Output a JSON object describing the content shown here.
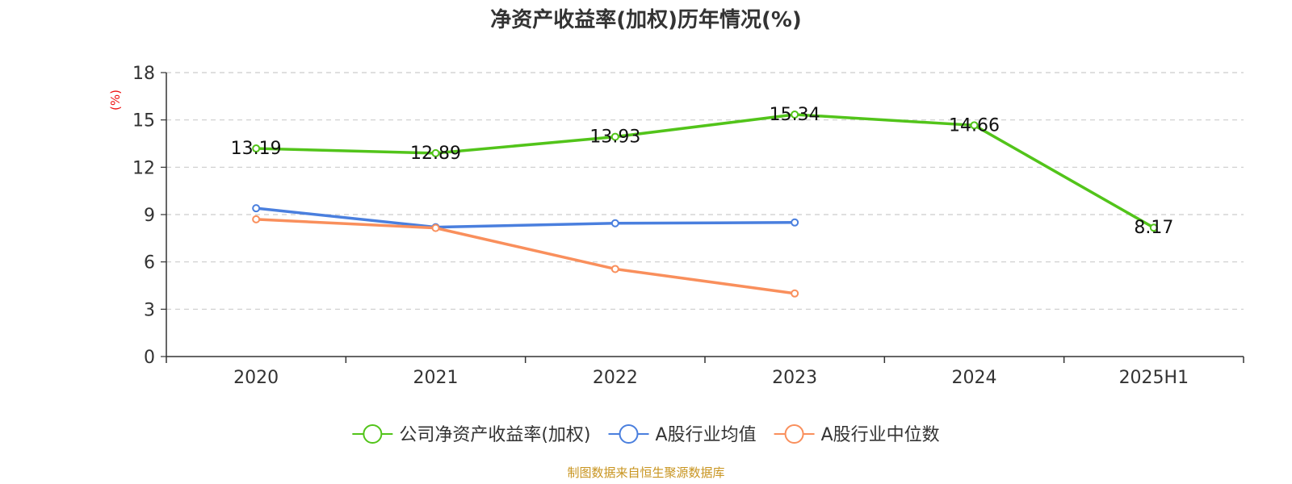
{
  "chart_data": {
    "type": "line",
    "title": "净资产收益率(加权)历年情况(%)",
    "ylabel": "(%)",
    "xlabel": "",
    "categories": [
      "2020",
      "2021",
      "2022",
      "2023",
      "2024",
      "2025H1"
    ],
    "ylim": [
      0,
      18
    ],
    "yticks": [
      0,
      3,
      6,
      9,
      12,
      15,
      18
    ],
    "grid": true,
    "legend_position": "bottom",
    "series": [
      {
        "name": "公司净资产收益率(加权)",
        "color": "#52c41a",
        "values": [
          13.19,
          12.89,
          13.93,
          15.34,
          14.66,
          8.17
        ],
        "labels": [
          "13.19",
          "12.89",
          "13.93",
          "15.34",
          "14.66",
          "8.17"
        ],
        "show_labels": true
      },
      {
        "name": "A股行业均值",
        "color": "#4a7fde",
        "values": [
          9.4,
          8.2,
          8.45,
          8.5,
          null,
          null
        ],
        "show_labels": false
      },
      {
        "name": "A股行业中位数",
        "color": "#f98f5c",
        "values": [
          8.7,
          8.15,
          5.55,
          4.0,
          null,
          null
        ],
        "show_labels": false
      }
    ]
  },
  "source_text": "制图数据来自恒生聚源数据库",
  "colors": {
    "axis": "#333333",
    "grid": "#cccccc",
    "ylabel": "#ee1111",
    "source": "#c8941f"
  }
}
